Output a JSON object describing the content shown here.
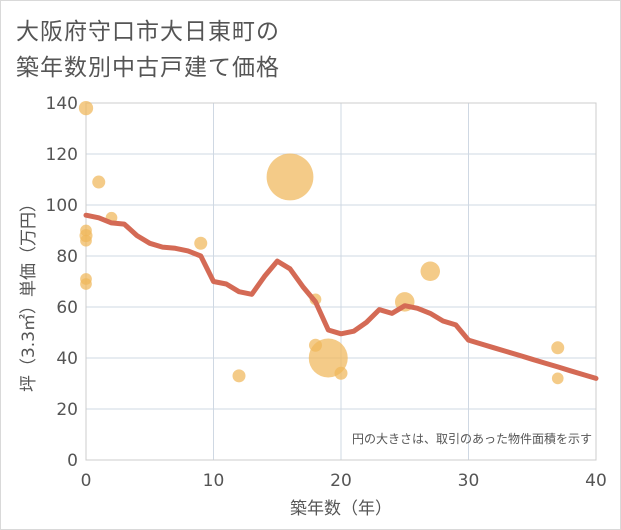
{
  "chart_data": {
    "type": "scatter",
    "title_line1": "大阪府守口市大日東町の",
    "title_line2": "築年数別中古戸建て価格",
    "xlabel": "築年数（年）",
    "ylabel": "坪（3.3㎡）単価（万円）",
    "xlim": [
      0,
      40
    ],
    "ylim": [
      0,
      140
    ],
    "xticks": [
      0,
      10,
      20,
      30,
      40
    ],
    "yticks": [
      0,
      20,
      40,
      60,
      80,
      100,
      120,
      140
    ],
    "grid": true,
    "note": "円の大きさは、取引のあった物件面積を示す",
    "colors": {
      "bubble": "#f0b75a",
      "line": "#d46a55",
      "grid": "#cfd8e3",
      "plot_border": "#cccccc"
    },
    "bubbles": [
      {
        "x": 0,
        "y": 138,
        "size": 1.1
      },
      {
        "x": 0,
        "y": 90,
        "size": 0.9
      },
      {
        "x": 0,
        "y": 88,
        "size": 1.0
      },
      {
        "x": 0,
        "y": 86,
        "size": 0.9
      },
      {
        "x": 0,
        "y": 71,
        "size": 0.9
      },
      {
        "x": 0,
        "y": 69,
        "size": 0.9
      },
      {
        "x": 1,
        "y": 109,
        "size": 1.0
      },
      {
        "x": 2,
        "y": 95,
        "size": 0.9
      },
      {
        "x": 9,
        "y": 85,
        "size": 1.0
      },
      {
        "x": 12,
        "y": 33,
        "size": 1.0
      },
      {
        "x": 16,
        "y": 111,
        "size": 3.6
      },
      {
        "x": 18,
        "y": 63,
        "size": 0.9
      },
      {
        "x": 18,
        "y": 45,
        "size": 1.0
      },
      {
        "x": 19,
        "y": 40,
        "size": 3.0
      },
      {
        "x": 20,
        "y": 34,
        "size": 1.0
      },
      {
        "x": 25,
        "y": 62,
        "size": 1.5
      },
      {
        "x": 27,
        "y": 74,
        "size": 1.5
      },
      {
        "x": 37,
        "y": 44,
        "size": 1.0
      },
      {
        "x": 37,
        "y": 32,
        "size": 0.9
      }
    ],
    "trend_line": [
      {
        "x": 0,
        "y": 96
      },
      {
        "x": 1,
        "y": 95
      },
      {
        "x": 2,
        "y": 93
      },
      {
        "x": 3,
        "y": 92.5
      },
      {
        "x": 4,
        "y": 88
      },
      {
        "x": 5,
        "y": 85
      },
      {
        "x": 6,
        "y": 83.5
      },
      {
        "x": 7,
        "y": 83
      },
      {
        "x": 8,
        "y": 82
      },
      {
        "x": 9,
        "y": 80
      },
      {
        "x": 10,
        "y": 70
      },
      {
        "x": 11,
        "y": 69
      },
      {
        "x": 12,
        "y": 66
      },
      {
        "x": 13,
        "y": 65
      },
      {
        "x": 14,
        "y": 72
      },
      {
        "x": 15,
        "y": 78
      },
      {
        "x": 16,
        "y": 75
      },
      {
        "x": 17,
        "y": 68
      },
      {
        "x": 18,
        "y": 62
      },
      {
        "x": 19,
        "y": 51
      },
      {
        "x": 20,
        "y": 49.5
      },
      {
        "x": 21,
        "y": 50.5
      },
      {
        "x": 22,
        "y": 54
      },
      {
        "x": 23,
        "y": 59
      },
      {
        "x": 24,
        "y": 57.5
      },
      {
        "x": 25,
        "y": 60.5
      },
      {
        "x": 26,
        "y": 59.5
      },
      {
        "x": 27,
        "y": 57.5
      },
      {
        "x": 28,
        "y": 54.5
      },
      {
        "x": 29,
        "y": 53
      },
      {
        "x": 30,
        "y": 47
      },
      {
        "x": 31,
        "y": 45.5
      },
      {
        "x": 32,
        "y": 44
      },
      {
        "x": 33,
        "y": 42.5
      },
      {
        "x": 34,
        "y": 41
      },
      {
        "x": 35,
        "y": 39.5
      },
      {
        "x": 36,
        "y": 38
      },
      {
        "x": 37,
        "y": 36.5
      },
      {
        "x": 38,
        "y": 35
      },
      {
        "x": 39,
        "y": 33.5
      },
      {
        "x": 40,
        "y": 32
      }
    ]
  }
}
